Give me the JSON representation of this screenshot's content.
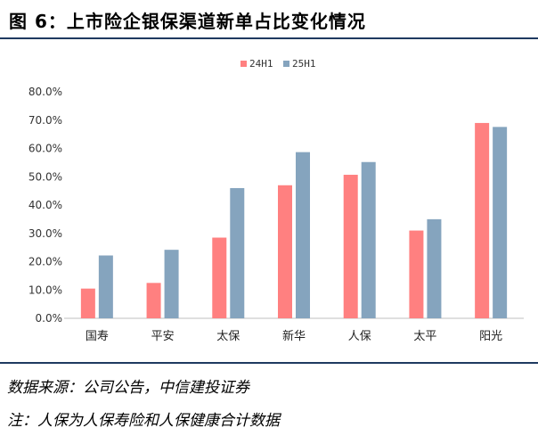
{
  "header": {
    "title": "图 6：上市险企银保渠道新单占比变化情况"
  },
  "chart_data": {
    "type": "bar",
    "categories": [
      "国寿",
      "平安",
      "太保",
      "新华",
      "人保",
      "太平",
      "阳光"
    ],
    "series": [
      {
        "name": "24H1",
        "color": "#ff8080",
        "values": [
          10.5,
          12.5,
          28.5,
          47.0,
          50.7,
          31.0,
          69.0
        ]
      },
      {
        "name": "25H1",
        "color": "#85a4be",
        "values": [
          22.2,
          24.2,
          46.0,
          58.7,
          55.2,
          35.0,
          67.6
        ]
      }
    ],
    "y_ticks": [
      "0.0%",
      "10.0%",
      "20.0%",
      "30.0%",
      "40.0%",
      "50.0%",
      "60.0%",
      "70.0%",
      "80.0%"
    ],
    "ylim": [
      0,
      80
    ],
    "legend_position": "top-center",
    "grid": false
  },
  "footer": {
    "source": "数据来源：公司公告，中信建投证券",
    "note": "注：人保为人保寿险和人保健康合计数据"
  }
}
